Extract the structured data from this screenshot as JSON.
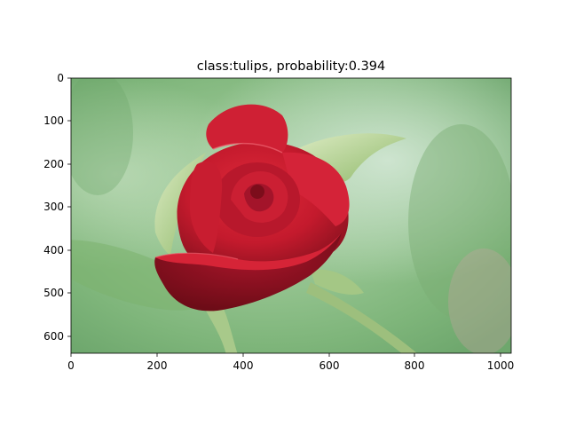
{
  "figure": {
    "title": "class:tulips, probability:0.394"
  },
  "image": {
    "subject": "red-rose-bud",
    "colors": {
      "background_light": "#b7d8b1",
      "background_mid": "#8fc18b",
      "background_dark": "#5f9c5c",
      "petal_bright": "#d21f32",
      "petal_mid": "#b3172a",
      "petal_dark": "#7f0f1c",
      "petal_highlight": "#f15a66",
      "sepal_green": "#9cc46e",
      "sepal_light": "#d6e8bb",
      "stem_green": "#8db770"
    }
  },
  "chart_data": {
    "type": "image",
    "title": "class:tulips, probability:0.394",
    "xlim": [
      0,
      1024
    ],
    "ylim": [
      640,
      0
    ],
    "x_ticks": [
      0,
      200,
      400,
      600,
      800,
      1000
    ],
    "y_ticks": [
      0,
      100,
      200,
      300,
      400,
      500,
      600
    ],
    "x_tick_labels": [
      "0",
      "200",
      "400",
      "600",
      "800",
      "1000"
    ],
    "y_tick_labels": [
      "0",
      "100",
      "200",
      "300",
      "400",
      "500",
      "600"
    ],
    "grid": false
  }
}
